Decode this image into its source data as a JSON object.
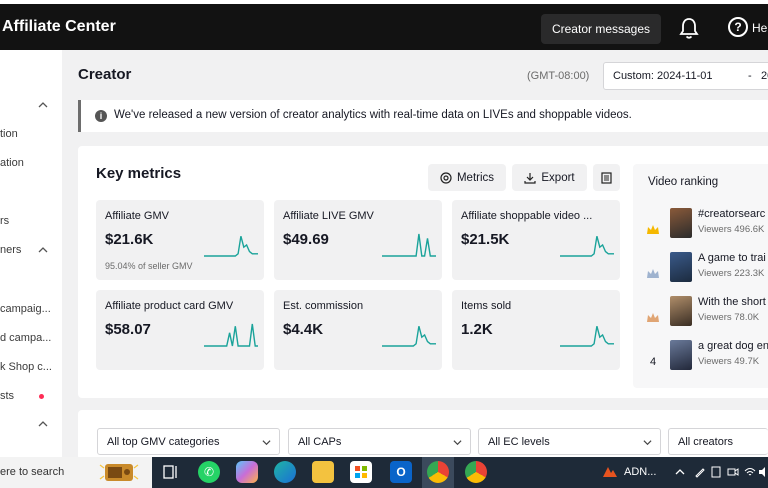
{
  "header": {
    "title": "Affiliate Center",
    "creator_messages": "Creator messages",
    "help_label": "Hel"
  },
  "sidebar": {
    "items": [
      {
        "label": "tion",
        "chevron": false
      },
      {
        "label": "ation",
        "chevron": false
      },
      {
        "label": "rs",
        "chevron": false
      },
      {
        "label": "ners",
        "chevron": true
      },
      {
        "label": "campaig...",
        "chevron": false
      },
      {
        "label": "d campa...",
        "chevron": false
      },
      {
        "label": "k Shop c...",
        "chevron": false
      },
      {
        "label": "sts",
        "chevron": false,
        "dot": true
      }
    ]
  },
  "page": {
    "title": "Creator",
    "timezone": "(GMT-08:00)",
    "date_from": "Custom: 2024-11-01",
    "date_sep": "-",
    "date_to": "20"
  },
  "notice": {
    "text": "We've released a new version of creator analytics with real-time data on LIVEs and shoppable videos."
  },
  "key_metrics": {
    "title": "Key metrics",
    "metrics_button": "Metrics",
    "export_button": "Export",
    "cards": [
      {
        "label": "Affiliate GMV",
        "value": "$21.6K",
        "sub": "95.04%  of seller GMV",
        "spark": [
          0,
          0,
          0,
          0,
          0,
          0,
          0,
          0,
          0,
          0,
          0,
          0,
          0.1,
          0.9,
          0.4,
          0.5,
          0.2,
          0.1,
          0.1,
          0.1
        ]
      },
      {
        "label": "Affiliate LIVE GMV",
        "value": "$49.69",
        "sub": "",
        "spark": [
          0,
          0,
          0,
          0,
          0,
          0,
          0,
          0,
          0,
          0,
          0,
          0,
          0,
          1,
          0,
          0,
          0.8,
          0,
          0,
          0
        ]
      },
      {
        "label": "Affiliate shoppable video ...",
        "value": "$21.5K",
        "sub": "",
        "spark": [
          0,
          0,
          0,
          0,
          0,
          0,
          0,
          0,
          0,
          0,
          0,
          0,
          0.1,
          0.9,
          0.4,
          0.5,
          0.2,
          0.1,
          0.1,
          0.1
        ]
      },
      {
        "label": "Affiliate product card GMV",
        "value": "$58.07",
        "sub": "",
        "spark": [
          0,
          0,
          0,
          0,
          0,
          0,
          0,
          0,
          0,
          0.6,
          0,
          0.9,
          0,
          0,
          0,
          0,
          0,
          1,
          0,
          0
        ]
      },
      {
        "label": "Est. commission",
        "value": "$4.4K",
        "sub": "",
        "spark": [
          0,
          0,
          0,
          0,
          0,
          0,
          0,
          0,
          0,
          0,
          0,
          0,
          0.1,
          0.9,
          0.4,
          0.5,
          0.2,
          0.1,
          0.1,
          0.1
        ]
      },
      {
        "label": "Items sold",
        "value": "1.2K",
        "sub": "",
        "spark": [
          0,
          0,
          0,
          0,
          0,
          0,
          0,
          0,
          0,
          0,
          0,
          0,
          0.1,
          0.9,
          0.4,
          0.5,
          0.2,
          0.1,
          0.1,
          0.1
        ]
      }
    ]
  },
  "video_ranking": {
    "title": "Video ranking",
    "items": [
      {
        "rank": "",
        "medal": "gold",
        "name": "#creatorsearc",
        "views": "Viewers 496.6K"
      },
      {
        "rank": "",
        "medal": "silver",
        "name": "A game to trai",
        "views": "Viewers 223.3K"
      },
      {
        "rank": "",
        "medal": "bronze",
        "name": "With the short",
        "views": "Viewers 78.0K"
      },
      {
        "rank": "4",
        "medal": "",
        "name": "a great dog en",
        "views": "Viewers 49.7K"
      }
    ]
  },
  "filters": {
    "gmv_categories": "All top GMV categories",
    "caps": "All CAPs",
    "ec_levels": "All EC levels",
    "creators": "All creators"
  },
  "taskbar": {
    "search_placeholder": "ere to search",
    "tray_text": "ADN...",
    "colors": {
      "accent": "#1aa39a"
    }
  }
}
